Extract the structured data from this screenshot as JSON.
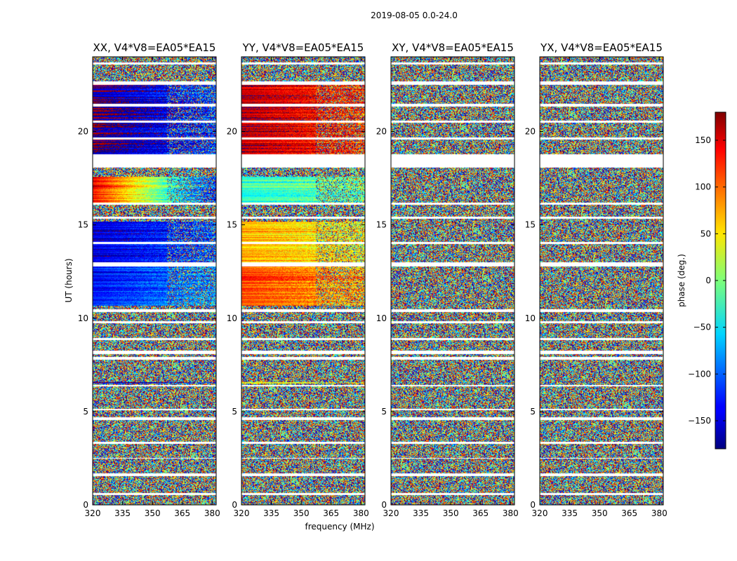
{
  "chart_data": {
    "type": "heatmap",
    "suptitle": "2019-08-05 0.0-24.0",
    "xlabel": "frequency (MHz)",
    "ylabel": "UT (hours)",
    "xlim": [
      320,
      382
    ],
    "ylim": [
      0,
      24
    ],
    "xticks": [
      "320",
      "335",
      "350",
      "365",
      "380"
    ],
    "yticks": [
      "0",
      "5",
      "10",
      "15",
      "20"
    ],
    "panels": [
      {
        "title": "XX, V4*V8=EA05*EA15",
        "pol": "XX"
      },
      {
        "title": "YY, V4*V8=EA05*EA15",
        "pol": "YY"
      },
      {
        "title": "XY, V4*V8=EA05*EA15",
        "pol": "XY"
      },
      {
        "title": "YX, V4*V8=EA05*EA15",
        "pol": "YX"
      }
    ],
    "colorbar": {
      "label": "phase (deg.)",
      "range": [
        -180,
        180
      ],
      "ticks": [
        "−150",
        "−100",
        "−50",
        "0",
        "50",
        "100",
        "150"
      ],
      "colormap": "jet"
    },
    "flagged_gaps_hours": [
      [
        0.55,
        0.65
      ],
      [
        1.55,
        1.7
      ],
      [
        2.5,
        2.55
      ],
      [
        3.3,
        3.4
      ],
      [
        4.55,
        4.7
      ],
      [
        5.1,
        5.15
      ],
      [
        6.35,
        6.45
      ],
      [
        7.8,
        7.95
      ],
      [
        8.1,
        8.3
      ],
      [
        8.85,
        8.95
      ],
      [
        9.75,
        9.85
      ],
      [
        10.35,
        10.5
      ],
      [
        12.8,
        13.0
      ],
      [
        14.0,
        14.1
      ],
      [
        15.35,
        15.45
      ],
      [
        16.1,
        16.2
      ],
      [
        18.1,
        18.8
      ],
      [
        19.6,
        19.7
      ],
      [
        20.5,
        20.6
      ],
      [
        21.35,
        21.5
      ],
      [
        22.5,
        22.7
      ],
      [
        23.6,
        23.7
      ]
    ],
    "coherent_bands": [
      {
        "pol": "XX",
        "range": [
          10.7,
          12.8
        ],
        "phase_start": -130,
        "phase_slope": 50
      },
      {
        "pol": "XX",
        "range": [
          13.0,
          15.2
        ],
        "phase_start": -150,
        "phase_slope": 40
      },
      {
        "pol": "XX",
        "range": [
          16.2,
          17.6
        ],
        "phase_start": 140,
        "phase_slope": -260
      },
      {
        "pol": "XX",
        "range": [
          18.8,
          22.5
        ],
        "phase_start": -175,
        "phase_slope": 60
      },
      {
        "pol": "XX",
        "range": [
          6.5,
          6.6
        ],
        "phase_start": -160,
        "phase_slope": 30
      },
      {
        "pol": "YY",
        "range": [
          10.7,
          12.8
        ],
        "phase_start": 110,
        "phase_slope": -40
      },
      {
        "pol": "YY",
        "range": [
          13.0,
          15.2
        ],
        "phase_start": 70,
        "phase_slope": -30
      },
      {
        "pol": "YY",
        "range": [
          16.2,
          17.6
        ],
        "phase_start": -30,
        "phase_slope": 20
      },
      {
        "pol": "YY",
        "range": [
          18.8,
          22.5
        ],
        "phase_start": 160,
        "phase_slope": -40
      },
      {
        "pol": "YY",
        "range": [
          6.5,
          6.6
        ],
        "phase_start": 60,
        "phase_slope": 10
      }
    ]
  }
}
